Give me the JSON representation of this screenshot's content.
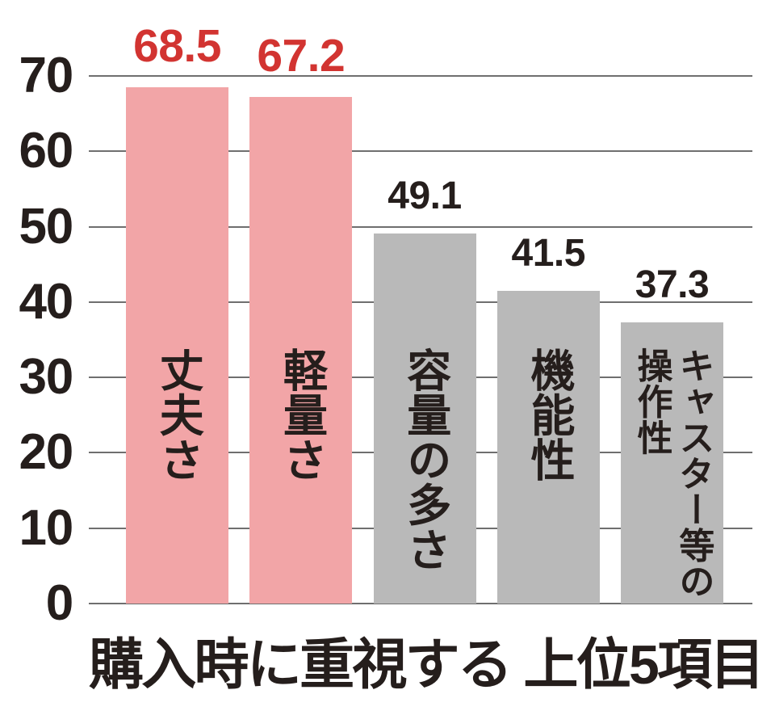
{
  "chart_data": {
    "type": "bar",
    "title": "購入時に重視する 上位5項目",
    "categories": [
      "丈夫さ",
      "軽量さ",
      "容量の多さ",
      "機能性",
      "キャスター等の\n操作性"
    ],
    "values": [
      68.5,
      67.2,
      49.1,
      41.5,
      37.3
    ],
    "value_labels": [
      "68.5",
      "67.2",
      "49.1",
      "41.5",
      "37.3"
    ],
    "highlighted": [
      true,
      true,
      false,
      false,
      false
    ],
    "yticks": [
      0,
      10,
      20,
      30,
      40,
      50,
      60,
      70
    ],
    "ylim": [
      0,
      70
    ],
    "grid": true,
    "legend_position": "none",
    "xlabel": "",
    "ylabel": "",
    "colors": {
      "highlight_bar": "#f2a5a7",
      "default_bar": "#b9b9b9",
      "highlight_value_text": "#d23431",
      "value_text": "#251e1c",
      "axis_text": "#251e1c",
      "gridline": "#6f6f6f",
      "background": "#ffffff"
    }
  }
}
